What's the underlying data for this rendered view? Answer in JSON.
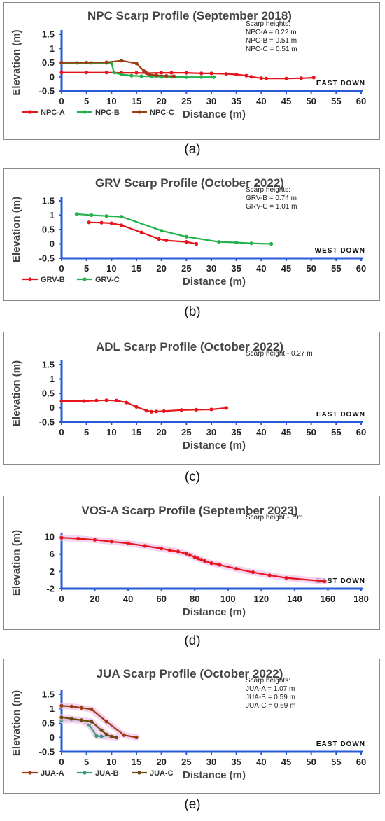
{
  "colors": {
    "red": "#e8141c",
    "green": "#22b24c",
    "brown": "#9b3a13",
    "teal": "#3a9a82",
    "olive": "#6e4a12",
    "axis": "#2a5bd7",
    "halo": "#f3c9ef"
  },
  "chart_data": [
    {
      "type": "line",
      "title": "NPC Scarp Profile (September 2018)",
      "xlabel": "Distance (m)",
      "ylabel": "Elevation (m)",
      "xlim": [
        0,
        60
      ],
      "ylim": [
        -0.5,
        1.5
      ],
      "xticks": [
        0,
        5,
        10,
        15,
        20,
        25,
        30,
        35,
        40,
        45,
        50,
        55,
        60
      ],
      "yticks": [
        "-0.5",
        "0",
        "0.5",
        "1",
        "1.5"
      ],
      "direction": "EAST DOWN",
      "notes": [
        "Scarp heights:",
        "NPC-A = 0.22 m",
        "NPC-B = 0.51 m",
        "NPC-C = 0.51 m"
      ],
      "legend_position": "bottom-left",
      "caption": "(a)",
      "series": [
        {
          "name": "NPC-A",
          "color": "red",
          "x": [
            0,
            5,
            9,
            12,
            15,
            17,
            20,
            22,
            25,
            28,
            30,
            33,
            35,
            37,
            38,
            40,
            41,
            45,
            48,
            50.5
          ],
          "y": [
            0.15,
            0.15,
            0.15,
            0.14,
            0.14,
            0.13,
            0.14,
            0.14,
            0.14,
            0.12,
            0.12,
            0.1,
            0.08,
            0.04,
            0.0,
            -0.05,
            -0.06,
            -0.06,
            -0.05,
            -0.03
          ]
        },
        {
          "name": "NPC-B",
          "color": "green",
          "x": [
            0,
            3,
            6,
            9,
            10,
            10.5,
            12,
            14,
            16,
            18,
            20,
            22,
            25,
            28,
            30.5
          ],
          "y": [
            0.49,
            0.49,
            0.49,
            0.49,
            0.48,
            0.15,
            0.08,
            0.04,
            0.02,
            0.01,
            0.0,
            0.0,
            -0.01,
            -0.01,
            -0.01
          ]
        },
        {
          "name": "NPC-C",
          "color": "brown",
          "x": [
            0,
            5,
            9,
            12,
            15,
            16.5,
            17.5,
            19,
            21,
            22.5
          ],
          "y": [
            0.5,
            0.5,
            0.51,
            0.57,
            0.47,
            0.2,
            0.08,
            0.05,
            0.03,
            0.02
          ]
        }
      ]
    },
    {
      "type": "line",
      "title": "GRV Scarp Profile (October 2022)",
      "xlabel": "Distance (m)",
      "ylabel": "Elevation (m)",
      "xlim": [
        0,
        60
      ],
      "ylim": [
        -0.5,
        1.5
      ],
      "xticks": [
        0,
        5,
        10,
        15,
        20,
        25,
        30,
        35,
        40,
        45,
        50,
        55,
        60
      ],
      "yticks": [
        "-0.5",
        "0",
        "0.5",
        "1",
        "1.5"
      ],
      "direction": "WEST DOWN",
      "notes": [
        "Scarp heights:",
        "GRV-B = 0.74 m",
        "GRV-C = 1.01 m"
      ],
      "legend_position": "bottom-left",
      "caption": "(b)",
      "series": [
        {
          "name": "GRV-B",
          "color": "red",
          "x": [
            5.5,
            8,
            10,
            12,
            16,
            19.5,
            21,
            25,
            27
          ],
          "y": [
            0.75,
            0.74,
            0.72,
            0.65,
            0.4,
            0.17,
            0.12,
            0.07,
            0.0
          ]
        },
        {
          "name": "GRV-C",
          "color": "green",
          "x": [
            3,
            6,
            9,
            12,
            20,
            25,
            31.5,
            35,
            38,
            42
          ],
          "y": [
            1.04,
            1.0,
            0.97,
            0.95,
            0.46,
            0.25,
            0.07,
            0.05,
            0.02,
            0.0
          ]
        }
      ]
    },
    {
      "type": "line",
      "title": "ADL Scarp Profile (October 2022)",
      "xlabel": "Distance (m)",
      "ylabel": "Elevation (m)",
      "xlim": [
        0,
        60
      ],
      "ylim": [
        -0.5,
        1.5
      ],
      "xticks": [
        0,
        5,
        10,
        15,
        20,
        25,
        30,
        35,
        40,
        45,
        50,
        55,
        60
      ],
      "yticks": [
        "-0.5",
        "0",
        "0.5",
        "1",
        "1.5"
      ],
      "direction": "EAST DOWN",
      "notes": [
        "Scarp height - 0.27 m"
      ],
      "caption": "(c)",
      "series": [
        {
          "color": "red",
          "x": [
            0,
            4.5,
            7,
            9,
            11,
            13,
            15,
            17,
            18,
            19,
            20.5,
            24,
            27,
            30,
            33
          ],
          "y": [
            0.23,
            0.23,
            0.25,
            0.26,
            0.25,
            0.18,
            0.03,
            -0.1,
            -0.14,
            -0.13,
            -0.12,
            -0.08,
            -0.07,
            -0.06,
            -0.01
          ]
        }
      ]
    },
    {
      "type": "line",
      "title": "VOS-A Scarp Profile (September 2023)",
      "xlabel": "Distance (m)",
      "ylabel": "Elevation (m)",
      "xlim": [
        0,
        180
      ],
      "ylim": [
        -2,
        10
      ],
      "xticks": [
        0,
        20,
        40,
        60,
        80,
        100,
        120,
        140,
        160,
        180
      ],
      "yticks": [
        "-2",
        "2",
        "6",
        "10"
      ],
      "direction": "EAST DOWN",
      "notes": [
        "Scarp height - 7 m"
      ],
      "caption": "(d)",
      "series": [
        {
          "color": "red",
          "x": [
            0,
            10,
            20,
            30,
            40,
            50,
            60,
            65,
            70,
            75,
            77,
            80,
            82,
            84,
            86,
            90,
            95,
            105,
            115,
            125,
            135,
            158
          ],
          "y": [
            9.8,
            9.6,
            9.3,
            8.9,
            8.5,
            7.9,
            7.3,
            6.9,
            6.6,
            6.1,
            5.8,
            5.3,
            5.0,
            4.7,
            4.4,
            3.9,
            3.5,
            2.6,
            1.8,
            1.1,
            0.5,
            -0.3
          ]
        }
      ]
    },
    {
      "type": "line",
      "title": "JUA Scarp Profile (October 2022)",
      "xlabel": "Distance (m)",
      "ylabel": "Elevation (m)",
      "xlim": [
        0,
        60
      ],
      "ylim": [
        -0.5,
        1.5
      ],
      "xticks": [
        0,
        5,
        10,
        15,
        20,
        25,
        30,
        35,
        40,
        45,
        50,
        55,
        60
      ],
      "yticks": [
        "-0.5",
        "0",
        "0.5",
        "1",
        "1.5"
      ],
      "direction": "EAST DOWN",
      "notes": [
        "Scarp heights:",
        "JUA-A = 1.07 m",
        "JUA-B = 0.59 m",
        "JUA-C = 0.69 m"
      ],
      "legend_position": "bottom-left",
      "caption": "(e)",
      "series": [
        {
          "name": "JUA-A",
          "color": "brown",
          "x": [
            0,
            2,
            4,
            6,
            9,
            12.5,
            15
          ],
          "y": [
            1.1,
            1.08,
            1.03,
            0.98,
            0.55,
            0.08,
            0.0
          ]
        },
        {
          "name": "JUA-B",
          "color": "teal",
          "x": [
            0,
            2,
            4,
            5.5,
            7,
            8,
            10,
            11
          ],
          "y": [
            0.6,
            0.61,
            0.58,
            0.45,
            0.05,
            0.04,
            0.02,
            0.0
          ]
        },
        {
          "name": "JUA-C",
          "color": "olive",
          "x": [
            0,
            2,
            4,
            6,
            8,
            9,
            10,
            11
          ],
          "y": [
            0.7,
            0.65,
            0.6,
            0.55,
            0.25,
            0.1,
            0.03,
            0.0
          ]
        }
      ]
    }
  ]
}
